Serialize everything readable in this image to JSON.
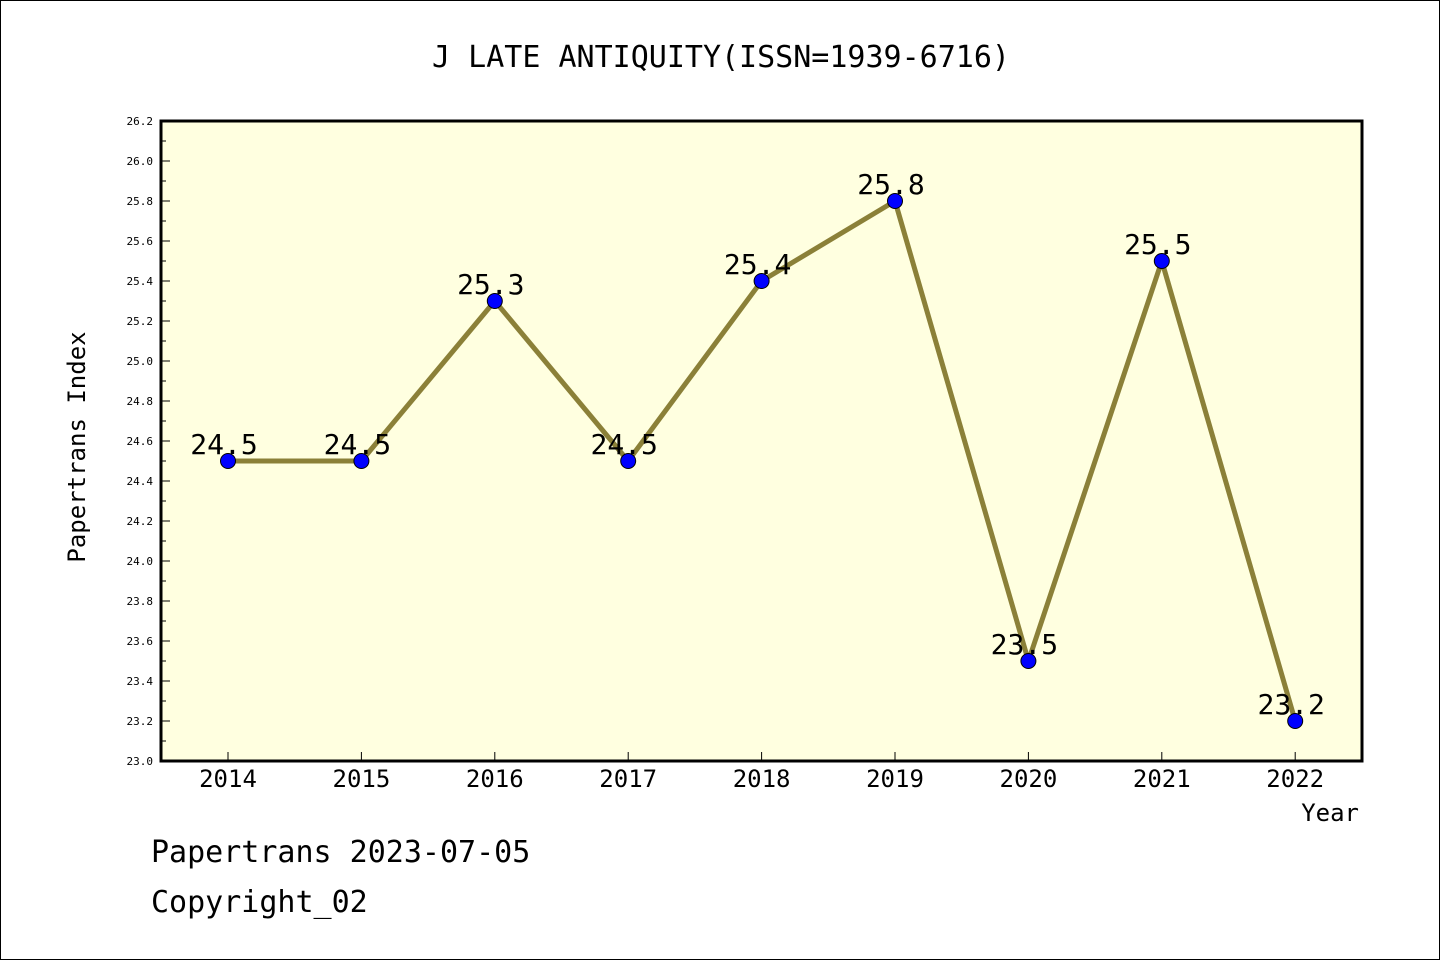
{
  "chart_data": {
    "type": "line",
    "title": "J LATE ANTIQUITY(ISSN=1939-6716)",
    "xlabel": "Year",
    "ylabel": "Papertrans Index",
    "categories": [
      "2014",
      "2015",
      "2016",
      "2017",
      "2018",
      "2019",
      "2020",
      "2021",
      "2022"
    ],
    "series": [
      {
        "values": [
          24.5,
          24.5,
          25.3,
          24.5,
          25.4,
          25.8,
          23.5,
          25.5,
          23.2
        ],
        "data_labels": [
          "24.5",
          "24.5",
          "25.3",
          "24.5",
          "25.4",
          "25.8",
          "23.5",
          "25.5",
          "23.2"
        ]
      }
    ],
    "ylim": [
      23.0,
      26.2
    ],
    "yticks": [
      "23.0",
      "23.2",
      "23.4",
      "23.6",
      "23.8",
      "24.0",
      "24.2",
      "24.4",
      "24.6",
      "24.8",
      "25.0",
      "25.2",
      "25.4",
      "25.6",
      "25.8",
      "26.0",
      "26.2"
    ],
    "grid": false,
    "legend": "none",
    "colors": {
      "plot_background": "#ffffe0",
      "line": "#8b8038",
      "marker": "#0000ff"
    }
  },
  "footer": {
    "date_line": "Papertrans 2023-07-05",
    "copyright": "Copyright_02"
  }
}
